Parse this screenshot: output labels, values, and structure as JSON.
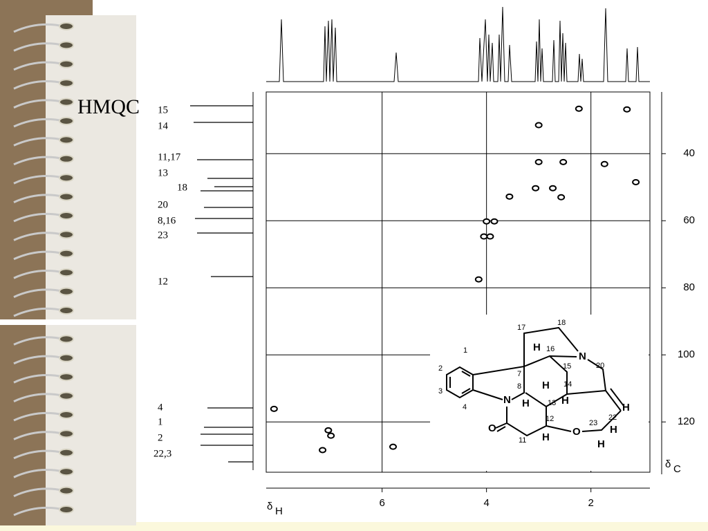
{
  "slide_title": "HMQC",
  "chart_data": {
    "type": "scatter",
    "x": [
      8.07,
      7.03,
      6.98,
      7.14,
      5.79,
      4.15,
      4.05,
      3.93,
      3.85,
      4.0,
      3.56,
      3.06,
      2.73,
      2.57,
      3.0,
      2.53,
      1.74,
      1.14,
      3.0,
      2.23,
      1.31
    ],
    "values": [
      116.1,
      122.5,
      124.1,
      128.4,
      127.4,
      77.5,
      64.7,
      64.7,
      60.2,
      60.2,
      52.8,
      50.3,
      50.3,
      53.0,
      42.5,
      42.5,
      43.1,
      48.5,
      31.5,
      26.6,
      26.8
    ],
    "xlim": [
      8.22,
      0.87
    ],
    "ylim": [
      21.6,
      135
    ],
    "xticks": [
      6,
      4,
      2
    ],
    "yticks": [
      40,
      60,
      80,
      100,
      120
    ],
    "x_label_symbol": "δ",
    "x_label_subscript": "H",
    "y_label_symbol": "δ",
    "y_label_subscript": "C",
    "color": "#000000",
    "carbon_labels": [
      "15",
      "14",
      "11,17",
      "13",
      "18",
      "20",
      "8,16",
      "23",
      "12",
      "4",
      "1",
      "2",
      "22,3"
    ]
  },
  "structure": {
    "numbers": [
      "1",
      "2",
      "3",
      "4",
      "7",
      "8",
      "16",
      "15",
      "14",
      "13",
      "12",
      "11",
      "17",
      "18",
      "20",
      "22",
      "23"
    ],
    "atoms": [
      "N",
      "N",
      "O",
      "O"
    ],
    "hydrogens": [
      "H",
      "H",
      "H",
      "H",
      "H",
      "H",
      "H",
      "H"
    ]
  }
}
